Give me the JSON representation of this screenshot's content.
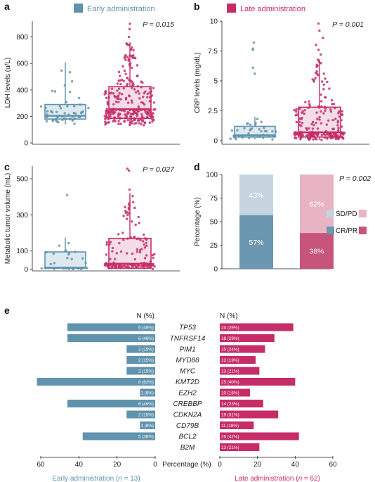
{
  "colors": {
    "early": "#5f93ae",
    "early_fill": "#dde8ef",
    "late": "#c62d68",
    "late_fill": "#f4dde6",
    "early_bar_light": "#c5d4df",
    "late_bar_light": "#e8b4c3",
    "early_bar_dark": "#6b97b1",
    "late_bar_dark": "#c7547a"
  },
  "legend": {
    "early": "Early administration",
    "late": "Late administration"
  },
  "panels": {
    "a": "a",
    "b": "b",
    "c": "c",
    "d": "d",
    "e": "e"
  },
  "chart_data": [
    {
      "panel": "a",
      "type": "box-swarm",
      "ylabel": "LDH levels (u/L)",
      "ylim": [
        -10,
        920
      ],
      "yticks": [
        0,
        200,
        400,
        600,
        800
      ],
      "annotation": "P = 0.015",
      "groups": [
        {
          "name": "Early administration",
          "q1": 180,
          "median": 205,
          "q3": 290,
          "whisker_low": 140,
          "whisker_high": 610,
          "n": 55
        },
        {
          "name": "Late administration",
          "q1": 185,
          "median": 255,
          "q3": 425,
          "whisker_low": 130,
          "whisker_high": 760,
          "outliers": [
            800,
            860,
            900
          ],
          "n": 260
        }
      ]
    },
    {
      "panel": "b",
      "type": "box-swarm",
      "ylabel": "CRP levels (mg/dL)",
      "ylim": [
        -0.3,
        10
      ],
      "yticks": [
        0,
        2.5,
        5,
        7.5,
        10
      ],
      "annotation": "P = 0.001",
      "groups": [
        {
          "name": "Early administration",
          "q1": 0.3,
          "median": 0.45,
          "q3": 1.2,
          "whisker_low": 0.1,
          "whisker_high": 2.0,
          "outliers": [
            5.6,
            6.1,
            7.6,
            7.7,
            8.2
          ],
          "n": 40
        },
        {
          "name": "Late administration",
          "q1": 0.3,
          "median": 0.7,
          "q3": 2.8,
          "whisker_low": 0.05,
          "whisker_high": 6.8,
          "outliers": [
            7.2,
            7.6,
            8.0,
            8.6,
            9.2,
            9.8
          ],
          "n": 220
        }
      ]
    },
    {
      "panel": "c",
      "type": "box-swarm",
      "ylabel": "Metabolic tumor volume (mL)",
      "ylim": [
        -10,
        570
      ],
      "yticks": [
        0,
        100,
        300,
        500
      ],
      "annotation": "P = 0.027",
      "groups": [
        {
          "name": "Early administration",
          "q1": 5,
          "median": 8,
          "q3": 95,
          "whisker_low": 0,
          "whisker_high": 175,
          "outliers": [
            410
          ],
          "n": 30
        },
        {
          "name": "Late administration",
          "q1": 5,
          "median": 30,
          "q3": 170,
          "whisker_low": 0,
          "whisker_high": 420,
          "outliers": [
            440,
            545,
            555
          ],
          "n": 150
        }
      ]
    },
    {
      "panel": "d",
      "type": "stacked-bar",
      "ylabel": "Percentage (%)",
      "ylim": [
        0,
        100
      ],
      "yticks": [
        0,
        25,
        50,
        75,
        100
      ],
      "annotation": "P = 0.002",
      "legend": [
        "SD/PD",
        "CR/PR"
      ],
      "bars": [
        {
          "name": "Early administration",
          "segments": [
            {
              "label": "CR/PR",
              "value": 57,
              "text": "57%"
            },
            {
              "label": "SD/PD",
              "value": 43,
              "text": "43%"
            }
          ]
        },
        {
          "name": "Late administration",
          "segments": [
            {
              "label": "CR/PR",
              "value": 38,
              "text": "38%"
            },
            {
              "label": "SD/PD",
              "value": 62,
              "text": "62%"
            }
          ]
        }
      ]
    },
    {
      "panel": "e",
      "type": "bar",
      "orientation": "butterfly",
      "header_left": "N (%)",
      "header_right": "N (%)",
      "xlabel_center": "Percentage (%)",
      "xlabel_left": "Early administration (n = 13)",
      "xlabel_right": "Late administration (n = 62)",
      "xlim": [
        0,
        60
      ],
      "xticks": [
        0,
        20,
        40,
        60
      ],
      "genes": [
        "TP53",
        "TNFRSF14",
        "PIM1",
        "MYD88",
        "MYC",
        "KMT2D",
        "EZH2",
        "CREBBP",
        "CDKN2A",
        "CD79B",
        "BCL2",
        "B2M"
      ],
      "early": {
        "values": [
          46,
          46,
          15,
          15,
          15,
          62,
          8,
          46,
          15,
          8,
          38,
          0
        ],
        "labels": [
          "6 (46%)",
          "6 (46%)",
          "2 (15%)",
          "2 (15%)",
          "2 (15%)",
          "8 (62%)",
          "1 (8%)",
          "6 (46%)",
          "2 (15%)",
          "1 (8%)",
          "5 (38%)",
          ""
        ]
      },
      "late": {
        "values": [
          39,
          29,
          24,
          19,
          21,
          40,
          16,
          23,
          31,
          18,
          42,
          21
        ],
        "labels": [
          "24 (39%)",
          "18 (29%)",
          "15 (24%)",
          "12 (19%)",
          "13 (21%)",
          "25 (40%)",
          "10 (16%)",
          "14 (23%)",
          "19 (31%)",
          "11 (18%)",
          "26 (42%)",
          "13 (21%)"
        ]
      }
    }
  ]
}
